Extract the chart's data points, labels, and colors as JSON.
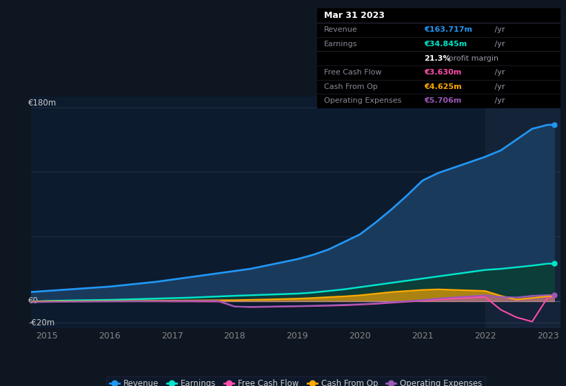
{
  "background_color": "#0e1621",
  "plot_bg_color": "#0d1b2e",
  "highlight_bg_color": "#152338",
  "title_date": "Mar 31 2023",
  "ylabel_top": "€180m",
  "ylabel_zero": "€0",
  "ylabel_neg": "-€20m",
  "years": [
    2014.75,
    2015.0,
    2015.25,
    2015.5,
    2015.75,
    2016.0,
    2016.25,
    2016.5,
    2016.75,
    2017.0,
    2017.25,
    2017.5,
    2017.75,
    2018.0,
    2018.25,
    2018.5,
    2018.75,
    2019.0,
    2019.25,
    2019.5,
    2019.75,
    2020.0,
    2020.25,
    2020.5,
    2020.75,
    2021.0,
    2021.25,
    2021.5,
    2021.75,
    2022.0,
    2022.25,
    2022.5,
    2022.75,
    2023.0,
    2023.1
  ],
  "revenue": [
    8.5,
    9.5,
    10.5,
    11.5,
    12.5,
    13.5,
    15,
    16.5,
    18,
    20,
    22,
    24,
    26,
    28,
    30,
    33,
    36,
    39,
    43,
    48,
    55,
    62,
    73,
    85,
    98,
    112,
    119,
    124,
    129,
    134,
    140,
    150,
    160,
    163.717,
    163.717
  ],
  "earnings": [
    -0.5,
    0.2,
    0.5,
    0.8,
    1.0,
    1.2,
    1.6,
    2.0,
    2.4,
    2.8,
    3.2,
    3.8,
    4.4,
    5.0,
    5.5,
    6.0,
    6.5,
    7.0,
    8.0,
    9.5,
    11,
    13,
    15,
    17,
    19,
    21,
    23,
    25,
    27,
    29,
    30,
    31.5,
    33,
    34.845,
    34.845
  ],
  "free_cash_flow": [
    -0.5,
    -0.3,
    -0.2,
    -0.2,
    -0.1,
    -0.1,
    -0.1,
    -0.1,
    -0.1,
    -0.2,
    -0.2,
    -0.3,
    -0.3,
    -5.0,
    -5.5,
    -5.3,
    -5.0,
    -4.8,
    -4.5,
    -4.2,
    -3.8,
    -3.2,
    -2.5,
    -1.5,
    -0.5,
    0.5,
    1.5,
    2.5,
    3.2,
    3.8,
    -8.0,
    -15.0,
    -19.0,
    3.63,
    3.63
  ],
  "cash_from_op": [
    -0.5,
    -0.3,
    -0.1,
    0.0,
    0.1,
    0.2,
    0.3,
    0.4,
    0.5,
    0.6,
    0.7,
    0.8,
    0.9,
    1.0,
    1.3,
    1.6,
    2.0,
    2.4,
    3.0,
    3.8,
    4.5,
    5.5,
    7.0,
    8.5,
    9.5,
    10.5,
    11.0,
    10.5,
    10.0,
    9.5,
    5.0,
    1.5,
    3.0,
    4.625,
    4.625
  ],
  "operating_expenses": [
    -1.0,
    -0.8,
    -0.6,
    -0.4,
    -0.3,
    -0.2,
    -0.1,
    0.0,
    0.1,
    0.2,
    0.3,
    0.3,
    0.3,
    -5.0,
    -5.2,
    -5.0,
    -4.8,
    -4.5,
    -4.2,
    -3.8,
    -3.3,
    -2.8,
    -2.0,
    -1.0,
    0.0,
    1.0,
    2.5,
    3.5,
    4.5,
    5.5,
    4.0,
    3.5,
    5.0,
    5.706,
    5.706
  ],
  "revenue_color": "#2196f3",
  "earnings_color": "#00e5cc",
  "free_cash_flow_color": "#ff4dac",
  "cash_from_op_color": "#ffaa00",
  "operating_expenses_color": "#9b59b6",
  "revenue_fill_color": "#1a3a5c",
  "earnings_fill_color": "#0d3d38",
  "highlight_x_start": 2022.0,
  "highlight_x_end": 2023.2,
  "xlim": [
    2014.75,
    2023.2
  ],
  "ylim": [
    -25,
    190
  ],
  "xticks": [
    2015,
    2016,
    2017,
    2018,
    2019,
    2020,
    2021,
    2022,
    2023
  ],
  "legend_items": [
    {
      "label": "Revenue",
      "color": "#2196f3"
    },
    {
      "label": "Earnings",
      "color": "#00e5cc"
    },
    {
      "label": "Free Cash Flow",
      "color": "#ff4dac"
    },
    {
      "label": "Cash From Op",
      "color": "#ffaa00"
    },
    {
      "label": "Operating Expenses",
      "color": "#9b59b6"
    }
  ],
  "tooltip_rows": [
    {
      "label": "Mar 31 2023",
      "value": "",
      "value_color": "#ffffff",
      "is_title": true
    },
    {
      "label": "Revenue",
      "value": "€163.717m",
      "suffix": " /yr",
      "value_color": "#2196f3"
    },
    {
      "label": "Earnings",
      "value": "€34.845m",
      "suffix": " /yr",
      "value_color": "#00e5cc"
    },
    {
      "label": "",
      "value": "21.3%",
      "suffix": " profit margin",
      "value_color": "#ffffff"
    },
    {
      "label": "Free Cash Flow",
      "value": "€3.630m",
      "suffix": " /yr",
      "value_color": "#ff4dac"
    },
    {
      "label": "Cash From Op",
      "value": "€4.625m",
      "suffix": " /yr",
      "value_color": "#ffaa00"
    },
    {
      "label": "Operating Expenses",
      "value": "€5.706m",
      "suffix": " /yr",
      "value_color": "#9b59b6"
    }
  ]
}
